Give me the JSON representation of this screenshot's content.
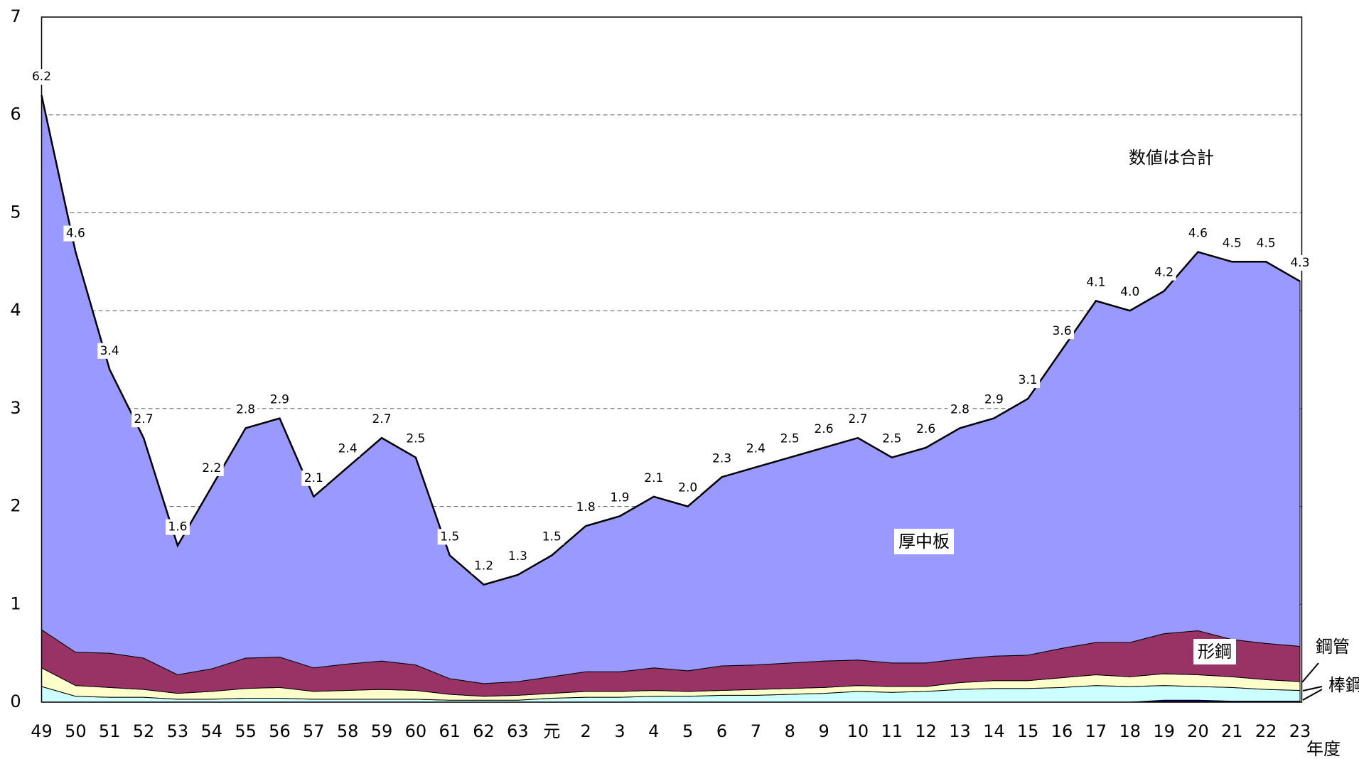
{
  "chart_data": {
    "type": "stacked-area",
    "categories": [
      "49",
      "50",
      "51",
      "52",
      "53",
      "54",
      "55",
      "56",
      "57",
      "58",
      "59",
      "60",
      "61",
      "62",
      "63",
      "元",
      "2",
      "3",
      "4",
      "5",
      "6",
      "7",
      "8",
      "9",
      "10",
      "11",
      "12",
      "13",
      "14",
      "15",
      "16",
      "17",
      "18",
      "19",
      "20",
      "21",
      "22",
      "23"
    ],
    "x_label": "年度",
    "annotation": "数値は合計",
    "ylim": [
      0,
      7
    ],
    "yticks": [
      0,
      1,
      2,
      3,
      4,
      5,
      6,
      7
    ],
    "grid": true,
    "series": [
      {
        "color": "#000080",
        "values": [
          0,
          0,
          0,
          0,
          0,
          0,
          0,
          0,
          0,
          0,
          0,
          0,
          0,
          0,
          0,
          0,
          0,
          0,
          0,
          0,
          0,
          0,
          0,
          0,
          0,
          0,
          0,
          0,
          0,
          0,
          0,
          0,
          0,
          0.02,
          0.02,
          0.01,
          0.01,
          0.01
        ]
      },
      {
        "name": "棒鋼",
        "color": "#ccffff",
        "values": [
          0.16,
          0.06,
          0.05,
          0.05,
          0.03,
          0.03,
          0.04,
          0.04,
          0.03,
          0.03,
          0.03,
          0.03,
          0.02,
          0.02,
          0.02,
          0.04,
          0.05,
          0.05,
          0.06,
          0.06,
          0.07,
          0.07,
          0.08,
          0.09,
          0.11,
          0.1,
          0.11,
          0.13,
          0.14,
          0.14,
          0.15,
          0.17,
          0.16,
          0.15,
          0.14,
          0.14,
          0.12,
          0.11
        ]
      },
      {
        "name": "鋼管",
        "color": "#ffffcc",
        "values": [
          0.19,
          0.11,
          0.1,
          0.08,
          0.06,
          0.08,
          0.1,
          0.11,
          0.08,
          0.09,
          0.1,
          0.09,
          0.06,
          0.04,
          0.05,
          0.05,
          0.06,
          0.06,
          0.06,
          0.05,
          0.05,
          0.06,
          0.06,
          0.06,
          0.06,
          0.06,
          0.05,
          0.07,
          0.08,
          0.08,
          0.1,
          0.11,
          0.1,
          0.12,
          0.12,
          0.11,
          0.1,
          0.09
        ]
      },
      {
        "name": "形鋼",
        "color": "#993366",
        "values": [
          0.39,
          0.34,
          0.35,
          0.32,
          0.19,
          0.23,
          0.31,
          0.31,
          0.24,
          0.27,
          0.29,
          0.26,
          0.16,
          0.13,
          0.14,
          0.17,
          0.2,
          0.2,
          0.23,
          0.21,
          0.25,
          0.25,
          0.26,
          0.27,
          0.26,
          0.24,
          0.24,
          0.24,
          0.25,
          0.26,
          0.3,
          0.33,
          0.35,
          0.41,
          0.45,
          0.38,
          0.37,
          0.36
        ]
      },
      {
        "name": "厚中板",
        "color": "#9999ff",
        "values": [
          5.46,
          4.09,
          2.9,
          2.25,
          1.32,
          1.86,
          2.35,
          2.44,
          1.75,
          2.01,
          2.28,
          2.12,
          1.26,
          1.01,
          1.09,
          1.24,
          1.49,
          1.59,
          1.75,
          1.68,
          1.93,
          2.02,
          2.1,
          2.18,
          2.27,
          2.1,
          2.2,
          2.36,
          2.43,
          2.62,
          3.05,
          3.49,
          3.39,
          3.5,
          3.87,
          3.86,
          3.9,
          3.73
        ]
      }
    ],
    "totals": {
      "values": [
        6.2,
        4.6,
        3.4,
        2.7,
        1.6,
        2.2,
        2.8,
        2.9,
        2.1,
        2.4,
        2.7,
        2.5,
        1.5,
        1.2,
        1.3,
        1.5,
        1.8,
        1.9,
        2.1,
        2.0,
        2.3,
        2.4,
        2.5,
        2.6,
        2.7,
        2.5,
        2.6,
        2.8,
        2.9,
        3.1,
        3.6,
        4.1,
        4.0,
        4.2,
        4.6,
        4.5,
        4.5,
        4.3
      ],
      "value_labels": [
        "6.2",
        "4.6",
        "3.4",
        "2.7",
        "1.6",
        "2.2",
        "2.8",
        "2.9",
        "2.1",
        "2.4",
        "2.7",
        "2.5",
        "1.5",
        "1.2",
        "1.3",
        "1.5",
        "1.8",
        "1.9",
        "2.1",
        "2.0",
        "2.3",
        "2.4",
        "2.5",
        "2.6",
        "2.7",
        "2.5",
        "2.6",
        "2.8",
        "2.9",
        "3.1",
        "3.6",
        "4.1",
        "4.0",
        "4.2",
        "4.6",
        "4.5",
        "4.5",
        "4.3"
      ]
    }
  }
}
